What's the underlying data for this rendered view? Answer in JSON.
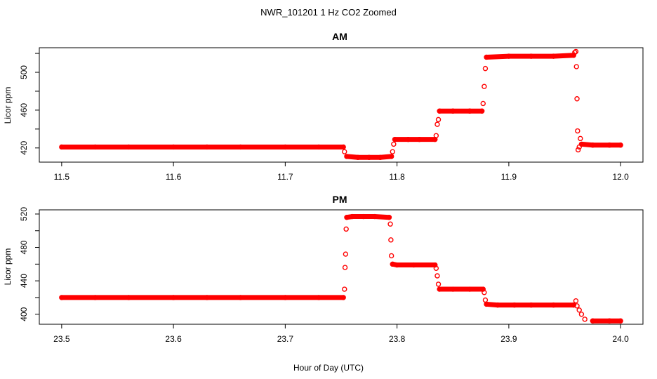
{
  "figure": {
    "title": "NWR_101201  1 Hz CO2 Zoomed",
    "xlabel": "Hour of Day (UTC)"
  },
  "chart_data": [
    {
      "type": "scatter",
      "title": "AM",
      "xlabel": "",
      "ylabel": "Licor ppm",
      "xlim": [
        11.48,
        12.02
      ],
      "ylim": [
        405,
        526
      ],
      "xticks": [
        "11.5",
        "11.6",
        "11.7",
        "11.8",
        "11.9",
        "12.0"
      ],
      "yticks": [
        "420",
        "460",
        "500"
      ],
      "grid": false,
      "marker_color": "#ff0000",
      "series": [
        {
          "points": [
            [
              11.5,
              421
            ],
            [
              11.53,
              421
            ],
            [
              11.56,
              421
            ],
            [
              11.6,
              421
            ],
            [
              11.63,
              421
            ],
            [
              11.66,
              421
            ],
            [
              11.7,
              421
            ],
            [
              11.73,
              421
            ],
            [
              11.752,
              421
            ],
            [
              11.753,
              416
            ],
            [
              11.755,
              411
            ],
            [
              11.765,
              410
            ],
            [
              11.775,
              410
            ],
            [
              11.785,
              410
            ],
            [
              11.795,
              411
            ],
            [
              11.796,
              416
            ],
            [
              11.797,
              424
            ],
            [
              11.798,
              429
            ],
            [
              11.81,
              429
            ],
            [
              11.82,
              429
            ],
            [
              11.834,
              429
            ],
            [
              11.835,
              433
            ],
            [
              11.836,
              445
            ],
            [
              11.837,
              450
            ],
            [
              11.838,
              459
            ],
            [
              11.85,
              459
            ],
            [
              11.865,
              459
            ],
            [
              11.876,
              459
            ],
            [
              11.877,
              467
            ],
            [
              11.878,
              485
            ],
            [
              11.879,
              504
            ],
            [
              11.88,
              516
            ],
            [
              11.9,
              517
            ],
            [
              11.92,
              517
            ],
            [
              11.94,
              517
            ],
            [
              11.958,
              518
            ],
            [
              11.959,
              521
            ],
            [
              11.96,
              522
            ],
            [
              11.9605,
              506
            ],
            [
              11.961,
              472
            ],
            [
              11.9615,
              438
            ],
            [
              11.962,
              418
            ],
            [
              11.963,
              421
            ],
            [
              11.964,
              430
            ],
            [
              11.965,
              424
            ],
            [
              11.975,
              423
            ],
            [
              11.99,
              423
            ],
            [
              12.0,
              423
            ]
          ]
        }
      ]
    },
    {
      "type": "scatter",
      "title": "PM",
      "xlabel": "Hour of Day (UTC)",
      "ylabel": "Licor ppm",
      "xlim": [
        23.48,
        24.02
      ],
      "ylim": [
        388,
        525
      ],
      "xticks": [
        "23.5",
        "23.6",
        "23.7",
        "23.8",
        "23.9",
        "24.0"
      ],
      "yticks": [
        "400",
        "440",
        "480",
        "520"
      ],
      "grid": false,
      "marker_color": "#ff0000",
      "series": [
        {
          "points": [
            [
              23.5,
              420
            ],
            [
              23.53,
              420
            ],
            [
              23.56,
              420
            ],
            [
              23.6,
              420
            ],
            [
              23.63,
              420
            ],
            [
              23.66,
              420
            ],
            [
              23.7,
              420
            ],
            [
              23.73,
              420
            ],
            [
              23.752,
              420
            ],
            [
              23.753,
              430
            ],
            [
              23.7535,
              456
            ],
            [
              23.754,
              472
            ],
            [
              23.7545,
              502
            ],
            [
              23.755,
              516
            ],
            [
              23.76,
              517
            ],
            [
              23.77,
              517
            ],
            [
              23.78,
              517
            ],
            [
              23.793,
              516
            ],
            [
              23.794,
              508
            ],
            [
              23.7945,
              489
            ],
            [
              23.795,
              470
            ],
            [
              23.796,
              460
            ],
            [
              23.8,
              459
            ],
            [
              23.815,
              459
            ],
            [
              23.834,
              459
            ],
            [
              23.835,
              455
            ],
            [
              23.836,
              446
            ],
            [
              23.837,
              436
            ],
            [
              23.838,
              430
            ],
            [
              23.85,
              430
            ],
            [
              23.865,
              430
            ],
            [
              23.877,
              430
            ],
            [
              23.878,
              426
            ],
            [
              23.879,
              417
            ],
            [
              23.88,
              412
            ],
            [
              23.89,
              411
            ],
            [
              23.905,
              411
            ],
            [
              23.92,
              411
            ],
            [
              23.94,
              411
            ],
            [
              23.958,
              411
            ],
            [
              23.96,
              416
            ],
            [
              23.961,
              410
            ],
            [
              23.963,
              405
            ],
            [
              23.965,
              400
            ],
            [
              23.968,
              394
            ],
            [
              23.975,
              392
            ],
            [
              23.99,
              392
            ],
            [
              24.0,
              392
            ]
          ]
        }
      ]
    }
  ]
}
